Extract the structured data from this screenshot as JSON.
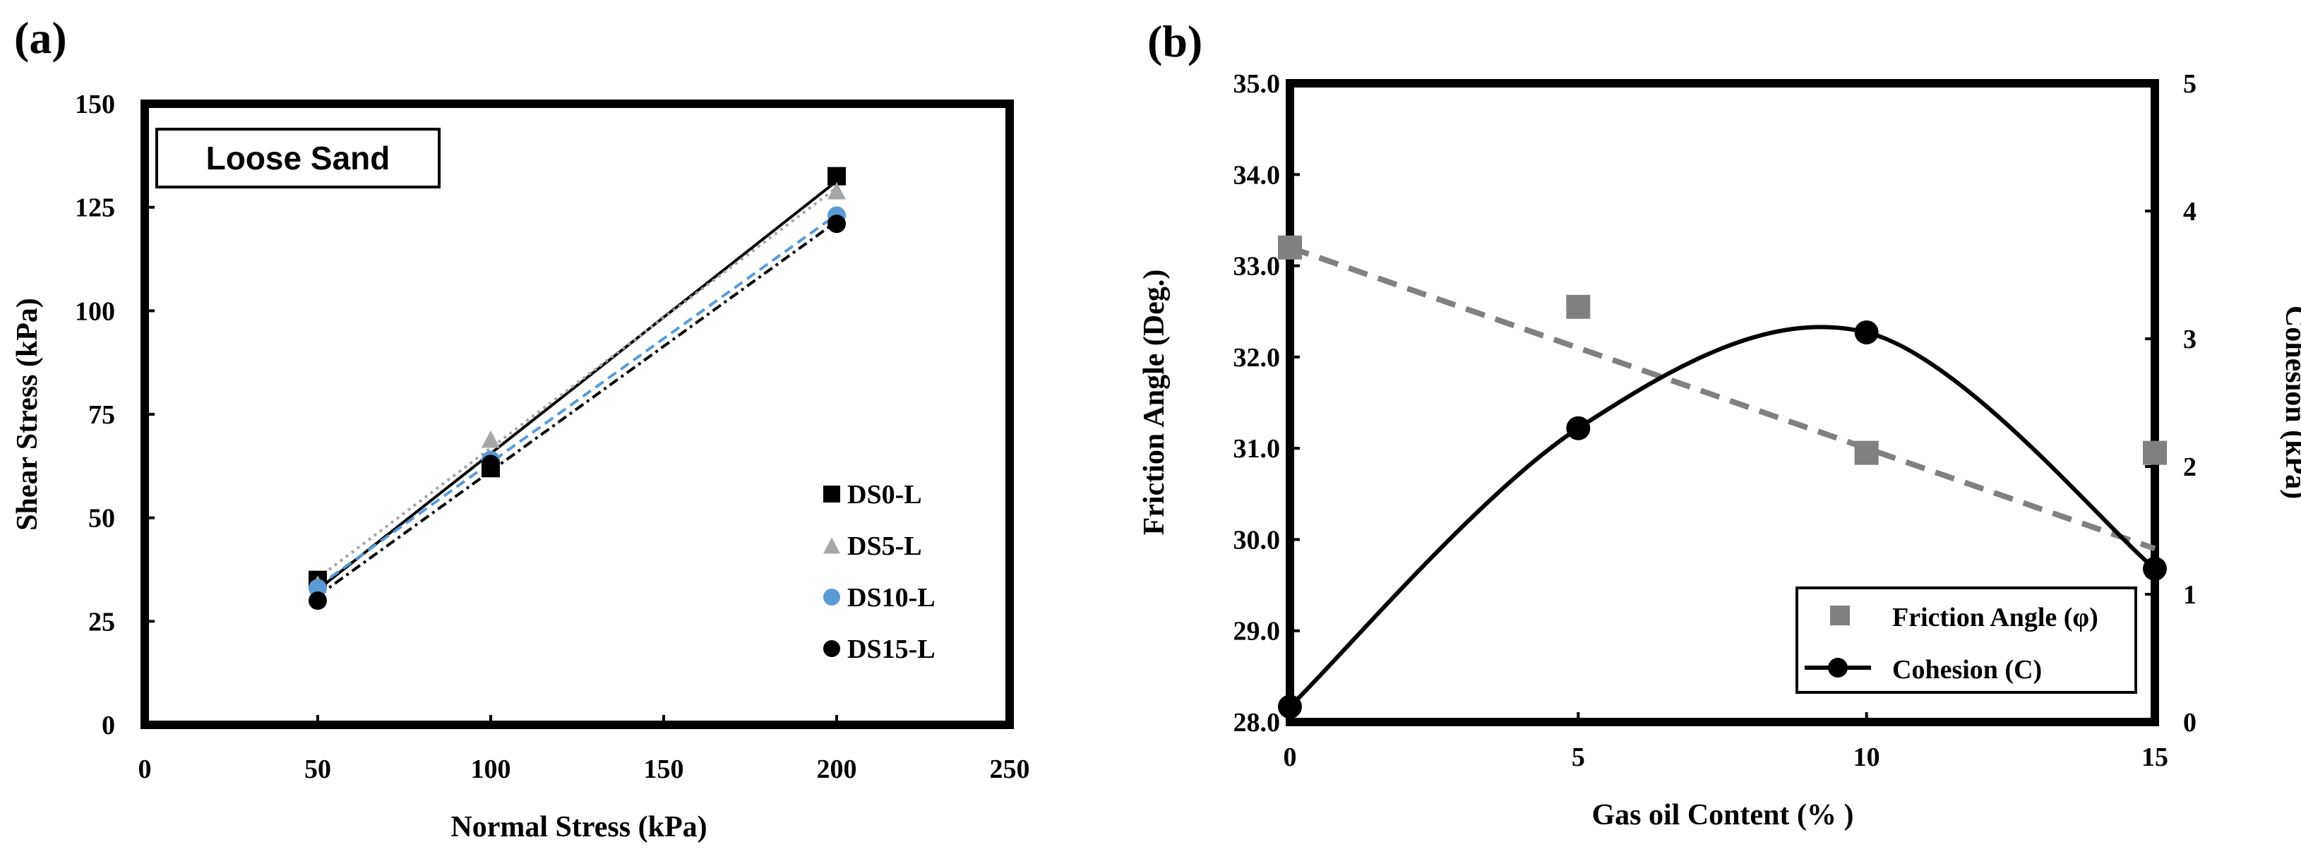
{
  "chart_data": [
    {
      "panel_label": "(a)",
      "type": "scatter",
      "annotation": "Loose Sand",
      "xlabel": "Normal  Stress (kPa)",
      "ylabel": "Shear Stress (kPa)",
      "xlim": [
        0,
        250
      ],
      "ylim": [
        0,
        150
      ],
      "xticks": [
        "0",
        "50",
        "100",
        "150",
        "200",
        "250"
      ],
      "yticks": [
        "0",
        "25",
        "50",
        "75",
        "100",
        "125",
        "150"
      ],
      "legend_position": "right",
      "x": [
        50,
        100,
        200
      ],
      "series": [
        {
          "name": "DS0-L",
          "values": [
            35,
            62,
            132.5
          ],
          "marker": "square",
          "color": "#000000",
          "line_color": "#000000",
          "dash": "solid"
        },
        {
          "name": "DS5-L",
          "values": [
            34,
            69,
            129
          ],
          "marker": "triangle",
          "color": "#a6a6a6",
          "line_color": "#a6a6a6",
          "dash": "dotted"
        },
        {
          "name": "DS10-L",
          "values": [
            33,
            64,
            123
          ],
          "marker": "circle",
          "color": "#5b9bd5",
          "line_color": "#5b9bd5",
          "dash": "dashed"
        },
        {
          "name": "DS15-L",
          "values": [
            30,
            63,
            121
          ],
          "marker": "circle",
          "color": "#000000",
          "line_color": "#000000",
          "dash": "dashdot"
        }
      ]
    },
    {
      "panel_label": "(b)",
      "type": "line",
      "xlabel": "Gas oil Content  (% )",
      "ylabel_left": "Friction  Angle  (Deg.)",
      "ylabel_right": "Cohesion  (kPa)",
      "xlim": [
        0,
        15
      ],
      "ylim_left": [
        28.0,
        35.0
      ],
      "ylim_right": [
        0,
        5
      ],
      "xticks": [
        "0",
        "5",
        "10",
        "15"
      ],
      "yticks_left": [
        "28.0",
        "29.0",
        "30.0",
        "31.0",
        "32.0",
        "33.0",
        "34.0",
        "35.0"
      ],
      "yticks_right": [
        "0",
        "1",
        "2",
        "3",
        "4",
        "5"
      ],
      "legend_position": "bottom-right",
      "x": [
        0,
        5,
        10,
        15
      ],
      "series": [
        {
          "name": "Friction Angle (φ)",
          "axis": "left",
          "values": [
            33.2,
            32.55,
            30.95,
            30.95
          ],
          "trend": [
            33.2,
            29.9
          ],
          "marker": "square",
          "color": "#808080"
        },
        {
          "name": "Cohesion (C)",
          "axis": "right",
          "values": [
            0.12,
            2.3,
            3.05,
            1.2
          ],
          "marker": "circle",
          "color": "#000000"
        }
      ]
    }
  ]
}
